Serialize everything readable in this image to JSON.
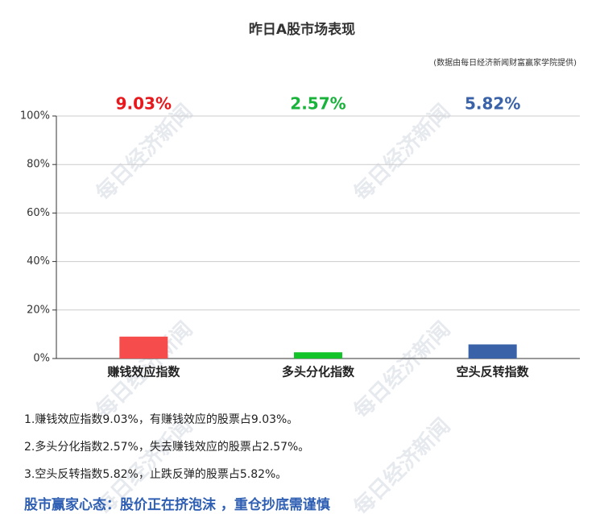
{
  "chart_data": {
    "type": "bar",
    "title": "昨日A股市场表现",
    "subtitle": "(数据由每日经济新闻财富赢家学院提供)",
    "watermark": "每日经济新闻",
    "categories": [
      "赚钱效应指数",
      "多头分化指数",
      "空头反转指数"
    ],
    "values": [
      9.03,
      2.57,
      5.82
    ],
    "value_labels": [
      "9.03%",
      "2.57%",
      "5.82%"
    ],
    "colors": [
      "#f64c4c",
      "#12c42a",
      "#3a62a8"
    ],
    "label_colors": [
      "#e8191d",
      "#19b23a",
      "#3a62a8"
    ],
    "ylim": [
      0,
      100
    ],
    "yticks": [
      {
        "value": 0,
        "label": "0%"
      },
      {
        "value": 20,
        "label": "20%"
      },
      {
        "value": 40,
        "label": "40%"
      },
      {
        "value": 60,
        "label": "60%"
      },
      {
        "value": 80,
        "label": "80%"
      },
      {
        "value": 100,
        "label": "100%"
      }
    ],
    "grid": true,
    "notes": [
      "1.赚钱效应指数9.03%，有赚钱效应的股票占9.03%。",
      "2.多头分化指数2.57%，失去赚钱效应的股票占2.57%。",
      "3.空头反转指数5.82%，止跌反弹的股票占5.82%。"
    ],
    "summary": "股市赢家心态：股价正在挤泡沫 ，重仓抄底需谨慎"
  }
}
